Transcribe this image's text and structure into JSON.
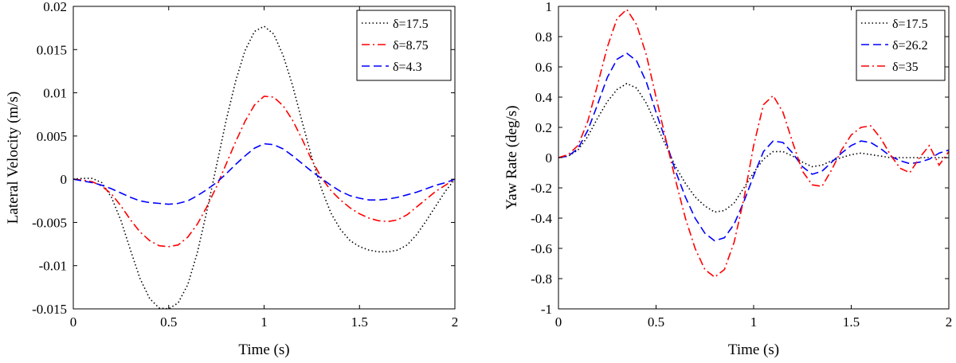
{
  "chart_data": [
    {
      "type": "line",
      "title": "",
      "xlabel": "Time (s)",
      "ylabel": "Lateral Velocity (m/s)",
      "xlim": [
        0,
        2
      ],
      "ylim": [
        -0.015,
        0.02
      ],
      "xticks": [
        "0",
        "0.5",
        "1",
        "1.5",
        "2"
      ],
      "yticks": [
        "-0.015",
        "-0.01",
        "-0.005",
        "0",
        "0.005",
        "0.01",
        "0.015",
        "0.02"
      ],
      "grid": false,
      "legend_position": "top-right",
      "series": [
        {
          "name": "δ=17.5",
          "color": "#000000",
          "style": "dotted",
          "x": [
            0,
            0.05,
            0.1,
            0.15,
            0.2,
            0.25,
            0.3,
            0.35,
            0.4,
            0.45,
            0.5,
            0.55,
            0.6,
            0.65,
            0.7,
            0.75,
            0.8,
            0.85,
            0.9,
            0.95,
            1.0,
            1.05,
            1.1,
            1.15,
            1.2,
            1.25,
            1.3,
            1.35,
            1.4,
            1.45,
            1.5,
            1.55,
            1.6,
            1.65,
            1.7,
            1.75,
            1.8,
            1.85,
            1.9,
            1.95,
            2.0
          ],
          "y": [
            0,
            0.0001,
            0.0001,
            -0.0004,
            -0.0021,
            -0.0048,
            -0.0082,
            -0.0115,
            -0.0138,
            -0.0149,
            -0.015,
            -0.0143,
            -0.0122,
            -0.0085,
            -0.0037,
            0.0015,
            0.0067,
            0.0113,
            0.0149,
            0.0171,
            0.0177,
            0.0168,
            0.0143,
            0.0108,
            0.0066,
            0.0025,
            -0.0011,
            -0.0039,
            -0.0058,
            -0.0071,
            -0.0078,
            -0.0082,
            -0.0084,
            -0.0084,
            -0.0082,
            -0.0076,
            -0.0064,
            -0.0048,
            -0.0031,
            -0.0014,
            0
          ]
        },
        {
          "name": "δ=8.75",
          "color": "#ff0000",
          "style": "dashdot",
          "x": [
            0,
            0.05,
            0.1,
            0.15,
            0.2,
            0.25,
            0.3,
            0.35,
            0.4,
            0.45,
            0.5,
            0.55,
            0.6,
            0.65,
            0.7,
            0.75,
            0.8,
            0.85,
            0.9,
            0.95,
            1.0,
            1.05,
            1.1,
            1.15,
            1.2,
            1.25,
            1.3,
            1.35,
            1.4,
            1.45,
            1.5,
            1.55,
            1.6,
            1.65,
            1.7,
            1.75,
            1.8,
            1.85,
            1.9,
            1.95,
            2.0
          ],
          "y": [
            0,
            -0.0001,
            -0.0003,
            -0.0008,
            -0.0017,
            -0.0031,
            -0.0047,
            -0.0061,
            -0.0071,
            -0.0077,
            -0.0078,
            -0.0076,
            -0.0067,
            -0.0052,
            -0.0032,
            -0.0009,
            0.0017,
            0.0043,
            0.0067,
            0.0086,
            0.0096,
            0.0095,
            0.0085,
            0.0068,
            0.0046,
            0.0022,
            0.0002,
            -0.0013,
            -0.0024,
            -0.0033,
            -0.004,
            -0.0045,
            -0.0048,
            -0.0049,
            -0.0047,
            -0.0041,
            -0.0032,
            -0.0023,
            -0.0014,
            -0.0007,
            0
          ]
        },
        {
          "name": "δ=4.3",
          "color": "#0000ff",
          "style": "dashed",
          "x": [
            0,
            0.05,
            0.1,
            0.15,
            0.2,
            0.25,
            0.3,
            0.35,
            0.4,
            0.45,
            0.5,
            0.55,
            0.6,
            0.65,
            0.7,
            0.75,
            0.8,
            0.85,
            0.9,
            0.95,
            1.0,
            1.05,
            1.1,
            1.15,
            1.2,
            1.25,
            1.3,
            1.35,
            1.4,
            1.45,
            1.5,
            1.55,
            1.6,
            1.65,
            1.7,
            1.75,
            1.8,
            1.85,
            1.9,
            1.95,
            2.0
          ],
          "y": [
            0,
            -0.0002,
            -0.0004,
            -0.0007,
            -0.0011,
            -0.0016,
            -0.0021,
            -0.0025,
            -0.0027,
            -0.0028,
            -0.0029,
            -0.0028,
            -0.0025,
            -0.0019,
            -0.0012,
            -0.0004,
            0.0006,
            0.0017,
            0.0027,
            0.0036,
            0.0041,
            0.004,
            0.0035,
            0.0027,
            0.0018,
            0.0009,
            0.0001,
            -0.0007,
            -0.0014,
            -0.0019,
            -0.0022,
            -0.0024,
            -0.0024,
            -0.0023,
            -0.0021,
            -0.0018,
            -0.0015,
            -0.0011,
            -0.0007,
            -0.0004,
            0
          ]
        }
      ]
    },
    {
      "type": "line",
      "title": "",
      "xlabel": "Time (s)",
      "ylabel": "Yaw Rate (deg/s)",
      "xlim": [
        0,
        2
      ],
      "ylim": [
        -1,
        1
      ],
      "xticks": [
        "0",
        "0.5",
        "1",
        "1.5",
        "2"
      ],
      "yticks": [
        "-1",
        "-0.8",
        "-0.6",
        "-0.4",
        "-0.2",
        "0",
        "0.2",
        "0.4",
        "0.6",
        "0.8",
        "1"
      ],
      "grid": false,
      "legend_position": "top-right",
      "series": [
        {
          "name": "δ=17.5",
          "color": "#000000",
          "style": "dotted",
          "x": [
            0,
            0.05,
            0.1,
            0.15,
            0.2,
            0.25,
            0.3,
            0.35,
            0.4,
            0.45,
            0.5,
            0.55,
            0.6,
            0.65,
            0.7,
            0.75,
            0.8,
            0.85,
            0.9,
            0.95,
            1.0,
            1.05,
            1.1,
            1.15,
            1.2,
            1.25,
            1.3,
            1.35,
            1.4,
            1.45,
            1.5,
            1.55,
            1.6,
            1.65,
            1.7,
            1.75,
            1.8,
            1.85,
            1.9,
            1.95,
            2.0
          ],
          "y": [
            0,
            0.01,
            0.05,
            0.14,
            0.26,
            0.37,
            0.45,
            0.49,
            0.46,
            0.36,
            0.22,
            0.08,
            -0.06,
            -0.17,
            -0.26,
            -0.32,
            -0.36,
            -0.35,
            -0.3,
            -0.2,
            -0.1,
            -0.01,
            0.04,
            0.04,
            0.01,
            -0.03,
            -0.06,
            -0.05,
            -0.02,
            0.0,
            0.02,
            0.03,
            0.02,
            0.01,
            0.0,
            0.0,
            0.0,
            0.0,
            0.0,
            0.0,
            0.0
          ]
        },
        {
          "name": "δ=26.2",
          "color": "#0000ff",
          "style": "dashed",
          "x": [
            0,
            0.05,
            0.1,
            0.15,
            0.2,
            0.25,
            0.3,
            0.35,
            0.4,
            0.45,
            0.5,
            0.55,
            0.6,
            0.65,
            0.7,
            0.75,
            0.8,
            0.85,
            0.9,
            0.95,
            1.0,
            1.05,
            1.1,
            1.15,
            1.2,
            1.25,
            1.3,
            1.35,
            1.4,
            1.45,
            1.5,
            1.55,
            1.6,
            1.65,
            1.7,
            1.75,
            1.8,
            1.85,
            1.9,
            1.95,
            2.0
          ],
          "y": [
            0,
            0.01,
            0.06,
            0.18,
            0.35,
            0.53,
            0.65,
            0.69,
            0.64,
            0.5,
            0.3,
            0.11,
            -0.09,
            -0.26,
            -0.4,
            -0.5,
            -0.55,
            -0.53,
            -0.44,
            -0.29,
            -0.12,
            0.04,
            0.11,
            0.1,
            0.03,
            -0.06,
            -0.11,
            -0.09,
            -0.03,
            0.03,
            0.08,
            0.11,
            0.1,
            0.06,
            0.01,
            -0.02,
            -0.04,
            -0.03,
            -0.01,
            0.03,
            0.05
          ]
        },
        {
          "name": "δ=35",
          "color": "#ff0000",
          "style": "dashdot",
          "x": [
            0,
            0.05,
            0.1,
            0.15,
            0.2,
            0.25,
            0.3,
            0.35,
            0.4,
            0.45,
            0.5,
            0.55,
            0.6,
            0.65,
            0.7,
            0.75,
            0.8,
            0.85,
            0.9,
            0.95,
            1.0,
            1.05,
            1.1,
            1.15,
            1.2,
            1.25,
            1.3,
            1.35,
            1.4,
            1.45,
            1.5,
            1.55,
            1.6,
            1.65,
            1.7,
            1.75,
            1.8,
            1.85,
            1.9,
            1.95,
            2.0
          ],
          "y": [
            0,
            0.02,
            0.08,
            0.24,
            0.48,
            0.73,
            0.92,
            0.98,
            0.88,
            0.68,
            0.4,
            0.12,
            -0.15,
            -0.4,
            -0.6,
            -0.74,
            -0.79,
            -0.74,
            -0.56,
            -0.27,
            0.08,
            0.35,
            0.41,
            0.3,
            0.1,
            -0.09,
            -0.18,
            -0.19,
            -0.08,
            0.05,
            0.15,
            0.2,
            0.21,
            0.13,
            0.02,
            -0.07,
            -0.1,
            0.0,
            0.08,
            -0.05,
            0.04
          ]
        }
      ]
    }
  ]
}
